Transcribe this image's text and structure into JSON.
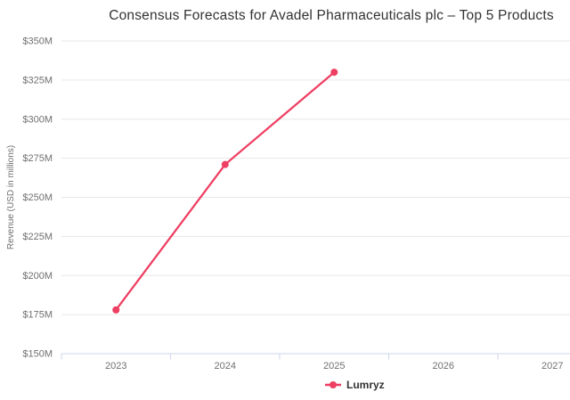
{
  "chart_data": {
    "type": "line",
    "title": "Consensus Forecasts for Avadel Pharmaceuticals plc – Top 5 Products",
    "xlabel": "",
    "ylabel": "Revenue (USD in millions)",
    "x": [
      "2023",
      "2024",
      "2025",
      "2026",
      "2027"
    ],
    "series": [
      {
        "name": "Lumryz",
        "color": "#ee3e62",
        "values": [
          178,
          271,
          330,
          null,
          null
        ]
      }
    ],
    "ylim": [
      150,
      350
    ],
    "ytick_step": 25,
    "ytick_labels": [
      "$150M",
      "$175M",
      "$200M",
      "$225M",
      "$250M",
      "$275M",
      "$300M",
      "$325M",
      "$350M"
    ],
    "grid": true,
    "legend_position": "bottom-center",
    "colors": {
      "title_text": "#333333",
      "axis_label_text": "#707070",
      "grid_line": "#e7e7e7",
      "axis_line": "#ccd6eb"
    }
  }
}
